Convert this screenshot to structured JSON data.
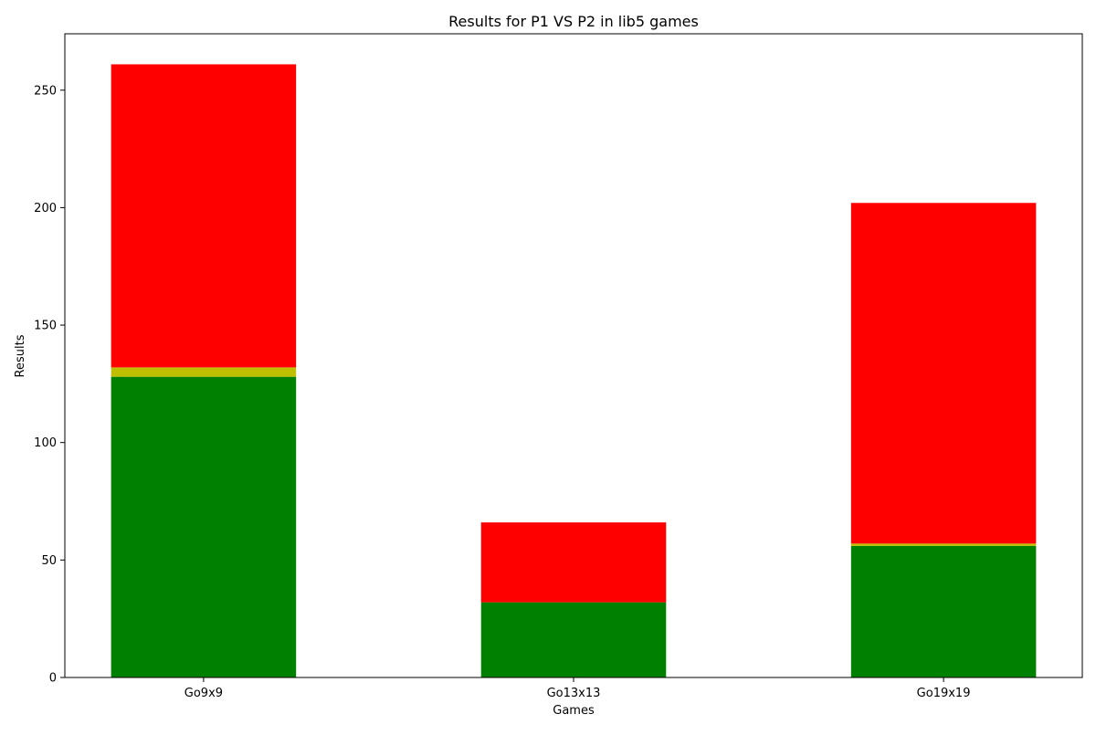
{
  "chart_data": {
    "type": "bar",
    "stacked": true,
    "title": "Results for P1 VS P2 in lib5 games",
    "xlabel": "Games",
    "ylabel": "Results",
    "categories": [
      "Go9x9",
      "Go13x13",
      "Go19x19"
    ],
    "series": [
      {
        "color": "#008000",
        "values": [
          128,
          32,
          56
        ]
      },
      {
        "color": "#bfbf00",
        "values": [
          4,
          0,
          1
        ]
      },
      {
        "color": "#ff0000",
        "values": [
          129,
          34,
          145
        ]
      }
    ],
    "ylim": [
      0,
      274
    ],
    "yticks": [
      0,
      50,
      100,
      150,
      200,
      250
    ],
    "grid": false,
    "legend": "none"
  }
}
